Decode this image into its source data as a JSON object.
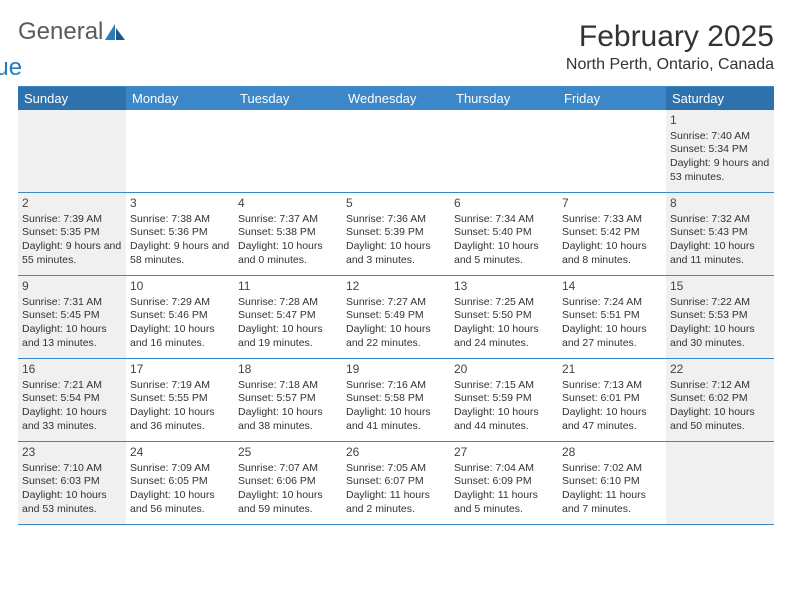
{
  "logo": {
    "word1": "General",
    "word2": "Blue"
  },
  "title": "February 2025",
  "location": "North Perth, Ontario, Canada",
  "colors": {
    "header_bg": "#3b87c8",
    "header_bg_weekend": "#2e72ad",
    "header_text": "#ffffff",
    "rule": "#3b87c8",
    "weekend_cell_bg": "#f0f0f0",
    "text": "#333333",
    "logo_gray": "#5a5a5a",
    "logo_blue": "#2a7db8"
  },
  "weekdays": [
    "Sunday",
    "Monday",
    "Tuesday",
    "Wednesday",
    "Thursday",
    "Friday",
    "Saturday"
  ],
  "weeks": [
    [
      null,
      null,
      null,
      null,
      null,
      null,
      {
        "n": "1",
        "sr": "7:40 AM",
        "ss": "5:34 PM",
        "dl": "9 hours and 53 minutes."
      }
    ],
    [
      {
        "n": "2",
        "sr": "7:39 AM",
        "ss": "5:35 PM",
        "dl": "9 hours and 55 minutes."
      },
      {
        "n": "3",
        "sr": "7:38 AM",
        "ss": "5:36 PM",
        "dl": "9 hours and 58 minutes."
      },
      {
        "n": "4",
        "sr": "7:37 AM",
        "ss": "5:38 PM",
        "dl": "10 hours and 0 minutes."
      },
      {
        "n": "5",
        "sr": "7:36 AM",
        "ss": "5:39 PM",
        "dl": "10 hours and 3 minutes."
      },
      {
        "n": "6",
        "sr": "7:34 AM",
        "ss": "5:40 PM",
        "dl": "10 hours and 5 minutes."
      },
      {
        "n": "7",
        "sr": "7:33 AM",
        "ss": "5:42 PM",
        "dl": "10 hours and 8 minutes."
      },
      {
        "n": "8",
        "sr": "7:32 AM",
        "ss": "5:43 PM",
        "dl": "10 hours and 11 minutes."
      }
    ],
    [
      {
        "n": "9",
        "sr": "7:31 AM",
        "ss": "5:45 PM",
        "dl": "10 hours and 13 minutes."
      },
      {
        "n": "10",
        "sr": "7:29 AM",
        "ss": "5:46 PM",
        "dl": "10 hours and 16 minutes."
      },
      {
        "n": "11",
        "sr": "7:28 AM",
        "ss": "5:47 PM",
        "dl": "10 hours and 19 minutes."
      },
      {
        "n": "12",
        "sr": "7:27 AM",
        "ss": "5:49 PM",
        "dl": "10 hours and 22 minutes."
      },
      {
        "n": "13",
        "sr": "7:25 AM",
        "ss": "5:50 PM",
        "dl": "10 hours and 24 minutes."
      },
      {
        "n": "14",
        "sr": "7:24 AM",
        "ss": "5:51 PM",
        "dl": "10 hours and 27 minutes."
      },
      {
        "n": "15",
        "sr": "7:22 AM",
        "ss": "5:53 PM",
        "dl": "10 hours and 30 minutes."
      }
    ],
    [
      {
        "n": "16",
        "sr": "7:21 AM",
        "ss": "5:54 PM",
        "dl": "10 hours and 33 minutes."
      },
      {
        "n": "17",
        "sr": "7:19 AM",
        "ss": "5:55 PM",
        "dl": "10 hours and 36 minutes."
      },
      {
        "n": "18",
        "sr": "7:18 AM",
        "ss": "5:57 PM",
        "dl": "10 hours and 38 minutes."
      },
      {
        "n": "19",
        "sr": "7:16 AM",
        "ss": "5:58 PM",
        "dl": "10 hours and 41 minutes."
      },
      {
        "n": "20",
        "sr": "7:15 AM",
        "ss": "5:59 PM",
        "dl": "10 hours and 44 minutes."
      },
      {
        "n": "21",
        "sr": "7:13 AM",
        "ss": "6:01 PM",
        "dl": "10 hours and 47 minutes."
      },
      {
        "n": "22",
        "sr": "7:12 AM",
        "ss": "6:02 PM",
        "dl": "10 hours and 50 minutes."
      }
    ],
    [
      {
        "n": "23",
        "sr": "7:10 AM",
        "ss": "6:03 PM",
        "dl": "10 hours and 53 minutes."
      },
      {
        "n": "24",
        "sr": "7:09 AM",
        "ss": "6:05 PM",
        "dl": "10 hours and 56 minutes."
      },
      {
        "n": "25",
        "sr": "7:07 AM",
        "ss": "6:06 PM",
        "dl": "10 hours and 59 minutes."
      },
      {
        "n": "26",
        "sr": "7:05 AM",
        "ss": "6:07 PM",
        "dl": "11 hours and 2 minutes."
      },
      {
        "n": "27",
        "sr": "7:04 AM",
        "ss": "6:09 PM",
        "dl": "11 hours and 5 minutes."
      },
      {
        "n": "28",
        "sr": "7:02 AM",
        "ss": "6:10 PM",
        "dl": "11 hours and 7 minutes."
      },
      null
    ]
  ],
  "labels": {
    "sunrise": "Sunrise:",
    "sunset": "Sunset:",
    "daylight": "Daylight:"
  }
}
